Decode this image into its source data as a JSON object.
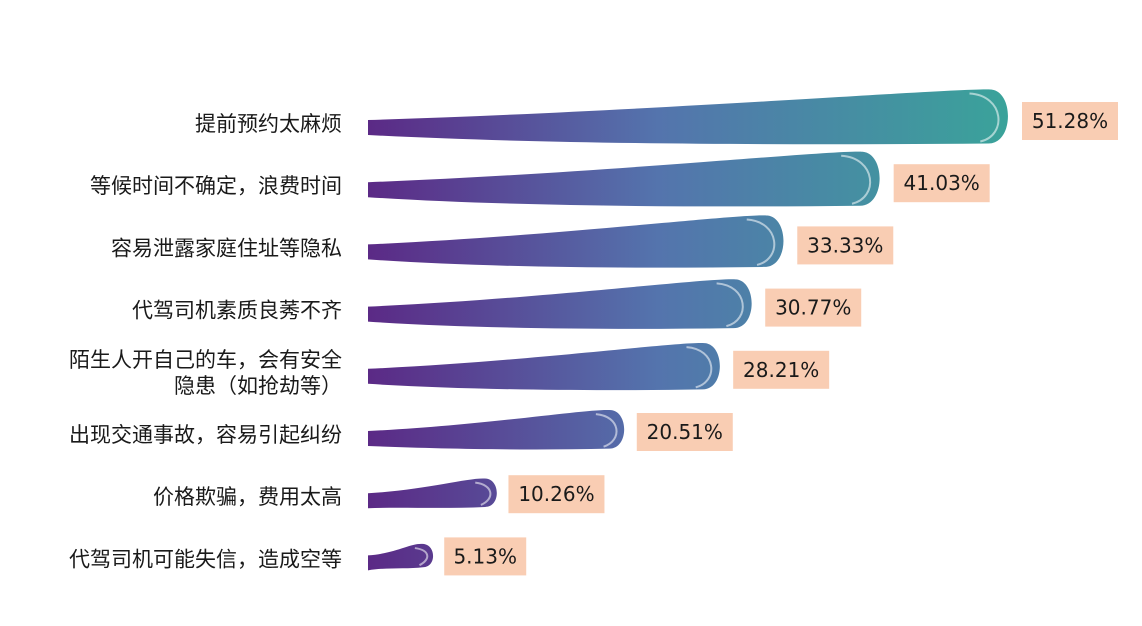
{
  "chart_data": {
    "type": "bar",
    "orientation": "horizontal",
    "title": "",
    "xlabel": "",
    "ylabel": "",
    "categories": [
      "提前预约太麻烦",
      "等候时间不确定，浪费时间",
      "容易泄露家庭住址等隐私",
      "代驾司机素质良莠不齐",
      "陌生人开自己的车，会有安全\n隐患（如抢劫等）",
      "出现交通事故，容易引起纠纷",
      "价格欺骗，费用太高",
      "代驾司机可能失信，造成空等"
    ],
    "values": [
      51.28,
      41.03,
      33.33,
      30.77,
      28.21,
      20.51,
      10.26,
      5.13
    ],
    "value_labels": [
      "51.28%",
      "41.03%",
      "33.33%",
      "30.77%",
      "28.21%",
      "20.51%",
      "10.26%",
      "5.13%"
    ],
    "xlim": [
      0,
      51.28
    ],
    "grid": false,
    "legend": "none",
    "colors": {
      "bar_start": "#5b2a86",
      "bar_mid": "#5474ad",
      "bar_end": "#3aa39a",
      "label_box": "#f9cdb3"
    }
  }
}
